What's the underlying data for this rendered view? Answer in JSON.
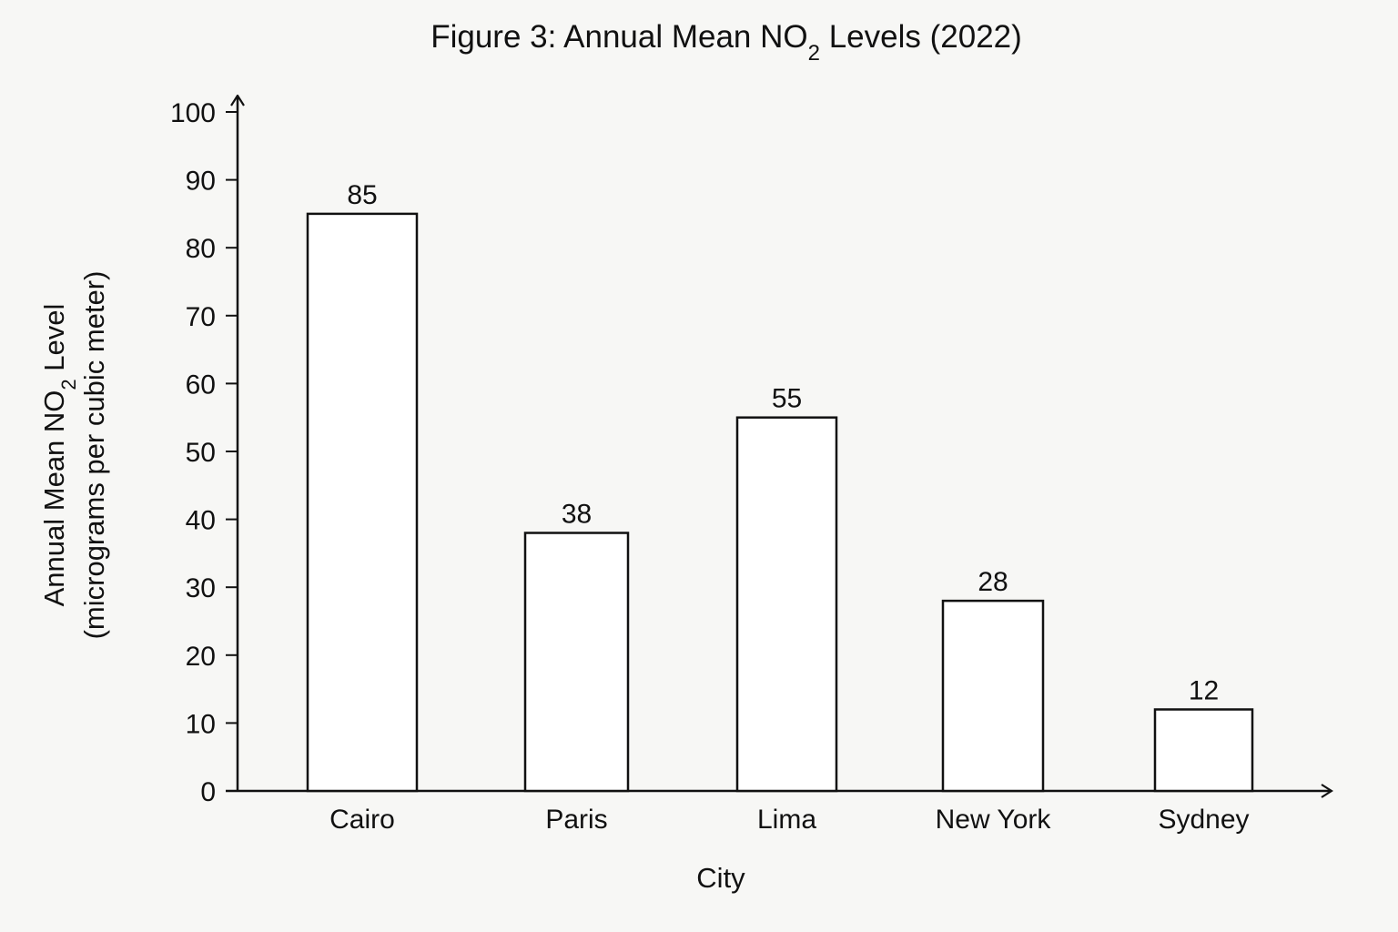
{
  "chart_data": {
    "type": "bar",
    "title": {
      "prefix": "Figure 3: Annual Mean NO",
      "subscript": "2",
      "suffix": " Levels (2022)"
    },
    "xlabel": "City",
    "ylabel": {
      "line1_prefix": "Annual Mean NO",
      "line1_subscript": "2",
      "line1_suffix": " Level",
      "line2": "(micrograms per cubic meter)"
    },
    "categories": [
      "Cairo",
      "Paris",
      "Lima",
      "New York",
      "Sydney"
    ],
    "values": [
      85,
      38,
      55,
      28,
      12
    ],
    "data_labels": [
      "85",
      "38",
      "55",
      "28",
      "12"
    ],
    "ylim": [
      0,
      100
    ],
    "yticks": [
      0,
      10,
      20,
      30,
      40,
      50,
      60,
      70,
      80,
      90,
      100
    ],
    "grid": false,
    "legend": "none",
    "colors": {
      "bar_fill": "#ffffff",
      "bar_stroke": "#111111",
      "background": "#f7f7f5"
    }
  }
}
